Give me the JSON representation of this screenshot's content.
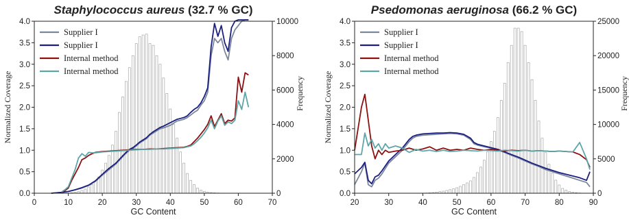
{
  "chart_data": [
    {
      "type": "line",
      "title_species": "Staphylococcus aureus",
      "title_suffix": " (32.7 % GC)",
      "xlabel": "GC Content",
      "ylabel": "Normalized Coverage",
      "y2label": "Frequency",
      "xlim": [
        0,
        70
      ],
      "ylim": [
        0,
        4.0
      ],
      "y2lim": [
        0,
        10000
      ],
      "xticks": [
        "0",
        "10",
        "20",
        "30",
        "40",
        "50",
        "60",
        "70"
      ],
      "yticks": [
        "0.0",
        "0.5",
        "1.0",
        "1.5",
        "2.0",
        "2.5",
        "3.0",
        "3.5",
        "4.0"
      ],
      "y2ticks": [
        "0",
        "2000",
        "4000",
        "6000",
        "8000",
        "10000"
      ],
      "grid": false,
      "legend_position": "top-left",
      "legend": [
        "Supplier I",
        "Supplier I",
        "Internal method",
        "Internal method"
      ],
      "series_colors": [
        "#7a879b",
        "#1c1f80",
        "#8b1010",
        "#5ea5a8"
      ],
      "histogram": {
        "x": [
          11,
          12,
          13,
          14,
          15,
          16,
          17,
          18,
          19,
          20,
          21,
          22,
          23,
          24,
          25,
          26,
          27,
          28,
          29,
          30,
          31,
          32,
          33,
          34,
          35,
          36,
          37,
          38,
          39,
          40,
          41,
          42,
          43,
          44,
          45,
          46,
          47,
          48,
          49,
          50,
          51,
          52,
          53,
          54,
          55,
          56,
          57
        ],
        "values": [
          30,
          60,
          100,
          160,
          240,
          360,
          500,
          700,
          950,
          1350,
          1750,
          2200,
          2800,
          3600,
          4700,
          5600,
          6500,
          7300,
          8000,
          8700,
          9100,
          9200,
          9250,
          8700,
          8600,
          8000,
          7500,
          6700,
          5800,
          4900,
          4000,
          3200,
          2400,
          1750,
          1150,
          750,
          500,
          300,
          180,
          110,
          70,
          40,
          25,
          15,
          10,
          5,
          3
        ]
      },
      "series": [
        {
          "name": "Supplier I",
          "x": [
            5,
            8,
            10,
            12,
            14,
            16,
            18,
            20,
            22,
            24,
            26,
            27,
            28,
            29,
            30,
            31,
            32,
            33,
            34,
            35,
            36,
            37,
            38,
            39,
            40,
            41,
            42,
            43,
            44,
            45,
            46,
            47,
            48,
            49,
            50,
            51,
            52,
            53,
            54,
            55,
            56,
            57,
            58,
            59,
            60,
            61,
            62,
            63
          ],
          "values": [
            0,
            0.02,
            0.04,
            0.08,
            0.12,
            0.18,
            0.28,
            0.42,
            0.55,
            0.68,
            0.85,
            0.93,
            1.0,
            1.04,
            1.1,
            1.17,
            1.22,
            1.27,
            1.35,
            1.4,
            1.45,
            1.5,
            1.52,
            1.55,
            1.58,
            1.63,
            1.68,
            1.7,
            1.72,
            1.76,
            1.82,
            1.88,
            1.93,
            2.05,
            2.15,
            2.35,
            3.2,
            3.6,
            3.5,
            3.6,
            3.3,
            3.1,
            3.6,
            3.8,
            3.9,
            4.0,
            4.1,
            4.2
          ]
        },
        {
          "name": "Supplier I",
          "x": [
            5,
            8,
            10,
            12,
            14,
            16,
            18,
            20,
            22,
            24,
            26,
            27,
            28,
            29,
            30,
            31,
            32,
            33,
            34,
            35,
            36,
            37,
            38,
            39,
            40,
            41,
            42,
            43,
            44,
            45,
            46,
            47,
            48,
            49,
            50,
            51,
            52,
            53,
            54,
            55,
            56,
            57,
            58,
            59,
            60,
            61,
            62,
            63
          ],
          "values": [
            0,
            0.02,
            0.04,
            0.08,
            0.13,
            0.19,
            0.29,
            0.44,
            0.58,
            0.7,
            0.87,
            0.95,
            1.02,
            1.06,
            1.12,
            1.19,
            1.24,
            1.29,
            1.37,
            1.43,
            1.48,
            1.53,
            1.56,
            1.6,
            1.64,
            1.68,
            1.72,
            1.74,
            1.76,
            1.8,
            1.88,
            1.95,
            2.0,
            2.1,
            2.25,
            2.45,
            3.4,
            3.95,
            3.65,
            3.9,
            3.5,
            3.3,
            3.85,
            4.0,
            4.1,
            4.2,
            4.25,
            4.3
          ]
        },
        {
          "name": "Internal method",
          "x": [
            8,
            9,
            10,
            11,
            12,
            13,
            14,
            15,
            16,
            17,
            18,
            20,
            22,
            24,
            26,
            28,
            30,
            32,
            34,
            36,
            38,
            40,
            42,
            44,
            45,
            46,
            47,
            48,
            49,
            50,
            51,
            52,
            53,
            54,
            55,
            56,
            57,
            58,
            59,
            60,
            61,
            62,
            63
          ],
          "values": [
            0.02,
            0.06,
            0.12,
            0.3,
            0.45,
            0.6,
            0.78,
            0.82,
            0.88,
            0.92,
            0.95,
            0.97,
            0.98,
            0.99,
            1.0,
            1.01,
            1.02,
            1.02,
            1.03,
            1.03,
            1.04,
            1.05,
            1.06,
            1.07,
            1.09,
            1.12,
            1.2,
            1.28,
            1.38,
            1.48,
            1.6,
            1.8,
            1.55,
            1.7,
            1.85,
            1.62,
            1.7,
            1.68,
            1.75,
            2.7,
            2.35,
            2.8,
            2.75
          ]
        },
        {
          "name": "Internal method",
          "x": [
            8,
            9,
            10,
            11,
            12,
            13,
            14,
            15,
            16,
            17,
            18,
            20,
            22,
            24,
            26,
            28,
            30,
            32,
            34,
            36,
            38,
            40,
            42,
            44,
            45,
            46,
            47,
            48,
            49,
            50,
            51,
            52,
            53,
            54,
            55,
            56,
            57,
            58,
            59,
            60,
            61,
            62,
            63
          ],
          "values": [
            0.03,
            0.08,
            0.15,
            0.35,
            0.55,
            0.82,
            0.92,
            0.86,
            0.95,
            0.94,
            0.94,
            0.96,
            0.97,
            0.98,
            0.99,
            1.0,
            1.01,
            1.02,
            1.02,
            1.03,
            1.03,
            1.04,
            1.05,
            1.06,
            1.08,
            1.1,
            1.15,
            1.22,
            1.3,
            1.4,
            1.52,
            1.7,
            1.5,
            1.68,
            1.8,
            1.58,
            1.66,
            1.62,
            1.7,
            2.15,
            1.95,
            2.35,
            2.0
          ]
        }
      ]
    },
    {
      "type": "line",
      "title_species": "Psedomonas aeruginosa",
      "title_suffix": " (66.2 % GC)",
      "xlabel": "GC Content",
      "ylabel": "Normalized Coverage",
      "y2label": "Frequency",
      "xlim": [
        20,
        90
      ],
      "ylim": [
        0,
        4.0
      ],
      "y2lim": [
        0,
        25000
      ],
      "xticks": [
        "20",
        "30",
        "40",
        "50",
        "60",
        "70",
        "80",
        "90"
      ],
      "yticks": [
        "0.0",
        "0.5",
        "1.0",
        "1.5",
        "2.0",
        "2.5",
        "3.0",
        "3.5",
        "4.0"
      ],
      "y2ticks": [
        "0",
        "5000",
        "10000",
        "15000",
        "20000",
        "25000"
      ],
      "grid": false,
      "legend_position": "top-left",
      "legend": [
        "Supplier I",
        "Supplier I",
        "Internal method",
        "Internal method"
      ],
      "series_colors": [
        "#7a879b",
        "#1c1f80",
        "#8b1010",
        "#5ea5a8"
      ],
      "histogram": {
        "x": [
          40,
          41,
          42,
          43,
          44,
          45,
          46,
          47,
          48,
          49,
          50,
          51,
          52,
          53,
          54,
          55,
          56,
          57,
          58,
          59,
          60,
          61,
          62,
          63,
          64,
          65,
          66,
          67,
          68,
          69,
          70,
          71,
          72,
          73,
          74,
          75,
          76,
          77,
          78,
          79,
          80,
          81,
          82,
          83,
          84,
          85,
          86,
          87,
          88
        ],
        "values": [
          20,
          40,
          70,
          110,
          160,
          230,
          300,
          400,
          520,
          650,
          800,
          1000,
          1250,
          1500,
          1800,
          2300,
          3000,
          3800,
          4800,
          6000,
          7500,
          9000,
          11000,
          13500,
          16000,
          19000,
          21500,
          24000,
          24000,
          23500,
          21500,
          19000,
          16500,
          13500,
          10500,
          8000,
          5900,
          4200,
          2900,
          1900,
          1200,
          700,
          450,
          250,
          150,
          80,
          40,
          20,
          10
        ]
      },
      "series": [
        {
          "name": "Supplier I",
          "x": [
            20,
            22,
            23,
            24,
            25,
            26,
            27,
            28,
            30,
            32,
            34,
            35,
            36,
            37,
            38,
            40,
            42,
            44,
            46,
            48,
            50,
            52,
            54,
            55,
            56,
            58,
            60,
            62,
            64,
            66,
            68,
            70,
            72,
            74,
            76,
            78,
            80,
            82,
            84,
            86,
            88,
            89
          ],
          "values": [
            0.2,
            0.5,
            0.7,
            0.2,
            0.15,
            0.3,
            0.35,
            0.45,
            0.7,
            0.85,
            1.0,
            1.1,
            1.2,
            1.28,
            1.32,
            1.35,
            1.36,
            1.37,
            1.38,
            1.39,
            1.38,
            1.35,
            1.25,
            1.15,
            1.12,
            1.08,
            1.05,
            1.0,
            0.95,
            0.88,
            0.82,
            0.75,
            0.68,
            0.62,
            0.55,
            0.5,
            0.45,
            0.4,
            0.35,
            0.3,
            0.25,
            0.15
          ]
        },
        {
          "name": "Supplier I",
          "x": [
            20,
            22,
            23,
            24,
            25,
            26,
            27,
            28,
            30,
            32,
            34,
            35,
            36,
            37,
            38,
            40,
            42,
            44,
            46,
            48,
            50,
            52,
            54,
            55,
            56,
            58,
            60,
            62,
            64,
            66,
            68,
            70,
            72,
            74,
            76,
            78,
            80,
            82,
            84,
            86,
            88,
            89
          ],
          "values": [
            0.45,
            0.6,
            0.72,
            0.3,
            0.22,
            0.38,
            0.42,
            0.52,
            0.75,
            0.9,
            1.05,
            1.15,
            1.25,
            1.32,
            1.35,
            1.38,
            1.39,
            1.4,
            1.4,
            1.41,
            1.4,
            1.37,
            1.28,
            1.18,
            1.14,
            1.1,
            1.06,
            1.02,
            0.96,
            0.9,
            0.84,
            0.77,
            0.7,
            0.64,
            0.58,
            0.53,
            0.48,
            0.44,
            0.4,
            0.36,
            0.3,
            0.5
          ]
        },
        {
          "name": "Internal method",
          "x": [
            20,
            21,
            22,
            23,
            24,
            25,
            26,
            27,
            28,
            29,
            30,
            32,
            34,
            36,
            38,
            40,
            42,
            44,
            46,
            48,
            50,
            52,
            54,
            56,
            58,
            60,
            62,
            64,
            66,
            68,
            70,
            72,
            74,
            76,
            78,
            80,
            82,
            84,
            86,
            88,
            89
          ],
          "values": [
            1.0,
            1.5,
            2.0,
            2.3,
            1.7,
            1.1,
            0.8,
            1.0,
            0.9,
            1.0,
            0.95,
            0.98,
            1.0,
            1.05,
            1.0,
            1.03,
            1.08,
            1.0,
            1.05,
            1.0,
            1.02,
            1.0,
            1.05,
            1.02,
            1.0,
            1.02,
            1.0,
            0.98,
            1.0,
            0.99,
            1.0,
            0.98,
            0.99,
            0.98,
            0.97,
            0.98,
            0.97,
            0.96,
            0.9,
            0.78,
            0.6
          ]
        },
        {
          "name": "Internal method",
          "x": [
            20,
            21,
            22,
            23,
            24,
            25,
            26,
            27,
            28,
            29,
            30,
            32,
            34,
            36,
            38,
            40,
            42,
            44,
            46,
            48,
            50,
            52,
            54,
            56,
            58,
            60,
            62,
            64,
            66,
            68,
            70,
            72,
            74,
            76,
            78,
            80,
            82,
            84,
            86,
            88,
            89
          ],
          "values": [
            0.9,
            0.9,
            0.9,
            1.4,
            1.1,
            1.25,
            1.05,
            1.15,
            1.0,
            1.15,
            1.05,
            1.1,
            1.05,
            0.95,
            1.02,
            0.98,
            1.0,
            0.97,
            1.0,
            0.97,
            0.98,
            1.0,
            0.99,
            0.98,
            1.0,
            0.99,
            0.98,
            1.0,
            0.99,
            0.98,
            1.0,
            0.98,
            0.99,
            0.98,
            0.97,
            0.98,
            0.97,
            0.96,
            1.18,
            0.8,
            0.55
          ]
        }
      ]
    }
  ]
}
